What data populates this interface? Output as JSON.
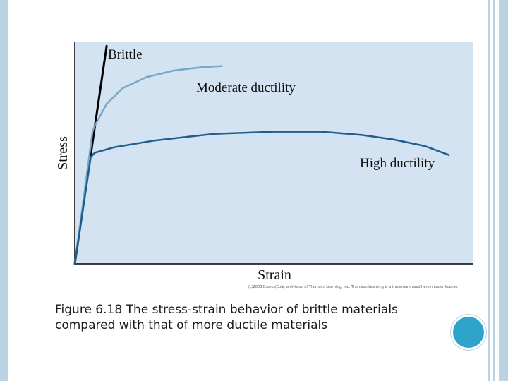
{
  "chart_data": {
    "type": "line",
    "title": "",
    "xlabel": "Strain",
    "ylabel": "Stress",
    "xlim": [
      0,
      100
    ],
    "ylim": [
      0,
      100
    ],
    "grid": false,
    "legend": "none",
    "series": [
      {
        "name": "Brittle",
        "x": [
          0,
          8
        ],
        "y": [
          0,
          98
        ]
      },
      {
        "name": "Moderate ductility",
        "x": [
          0,
          4.5,
          5,
          8,
          12,
          18,
          25,
          32,
          37
        ],
        "y": [
          0,
          60,
          62,
          72,
          79,
          84,
          87,
          88.5,
          89
        ]
      },
      {
        "name": "High ductility",
        "x": [
          0,
          4,
          5,
          10,
          20,
          35,
          50,
          62,
          72,
          80,
          88,
          94
        ],
        "y": [
          0,
          48,
          50,
          52.5,
          55.5,
          58.5,
          59.5,
          59.5,
          58,
          56,
          53,
          49
        ]
      }
    ],
    "colors": {
      "Brittle": "#000000",
      "Moderate ductility": "#7aa6c7",
      "High ductility": "#1f5f8f"
    },
    "background": "#d3e3f1"
  },
  "caption": {
    "line1": "Figure 6.18 The stress-strain behavior of brittle materials",
    "line2": "compared with that of more ductile materials"
  },
  "credit": "(c)2003 Brooks/Cole, a division of Thomson Learning, Inc. Thomson Learning is a trademark used herein under license."
}
